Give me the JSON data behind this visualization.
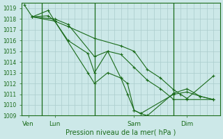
{
  "title": "Pression niveau de la mer( hPa )",
  "bg_color": "#cce8e8",
  "grid_color": "#aacccc",
  "line_color": "#1a6b1a",
  "ylim": [
    1009,
    1019.5
  ],
  "yticks": [
    1009,
    1010,
    1011,
    1012,
    1013,
    1014,
    1015,
    1016,
    1017,
    1018,
    1019
  ],
  "xlim": [
    0,
    15
  ],
  "xtick_labels": [
    "Ven",
    "Lun",
    "Sam",
    "Dim"
  ],
  "xtick_positions": [
    0.5,
    2.5,
    8.5,
    12.5
  ],
  "vline_positions": [
    1.5,
    5.5,
    11.5
  ],
  "series": [
    {
      "x": [
        0.2,
        0.8,
        2.5,
        3.5,
        5.5,
        7.5,
        8.5,
        9.5,
        10.5,
        11.5,
        12.0,
        12.5,
        14.5
      ],
      "y": [
        1019.3,
        1018.2,
        1017.8,
        1017.3,
        1016.2,
        1015.5,
        1015.0,
        1013.3,
        1012.5,
        1011.4,
        1011.0,
        1010.6,
        1012.7
      ]
    },
    {
      "x": [
        0.8,
        2.5,
        3.5,
        5.5,
        6.5,
        7.5,
        8.5,
        9.5,
        10.5,
        11.5,
        12.5,
        14.5
      ],
      "y": [
        1018.2,
        1018.0,
        1017.5,
        1014.5,
        1015.0,
        1014.7,
        1013.5,
        1012.3,
        1011.5,
        1010.5,
        1010.5,
        1010.5
      ]
    },
    {
      "x": [
        0.8,
        2.0,
        2.5,
        3.5,
        5.0,
        5.5,
        6.5,
        7.5,
        8.0,
        8.5,
        9.0,
        11.5,
        12.5,
        13.5,
        14.5
      ],
      "y": [
        1018.2,
        1018.8,
        1017.8,
        1016.0,
        1014.8,
        1013.0,
        1015.0,
        1012.5,
        1012.0,
        1009.5,
        1009.2,
        1011.0,
        1011.2,
        1010.8,
        1010.5
      ]
    },
    {
      "x": [
        0.8,
        2.0,
        2.5,
        5.0,
        5.5,
        6.5,
        7.5,
        8.0,
        8.5,
        9.0,
        9.5,
        11.5,
        12.5,
        13.5,
        14.5
      ],
      "y": [
        1018.2,
        1018.3,
        1017.8,
        1013.0,
        1012.0,
        1013.0,
        1012.5,
        1011.0,
        1009.5,
        1009.2,
        1009.0,
        1011.1,
        1011.5,
        1010.8,
        1010.5
      ]
    }
  ],
  "ylabel_fontsize": 5.5,
  "xlabel_fontsize": 6.5,
  "title_fontsize": 7
}
